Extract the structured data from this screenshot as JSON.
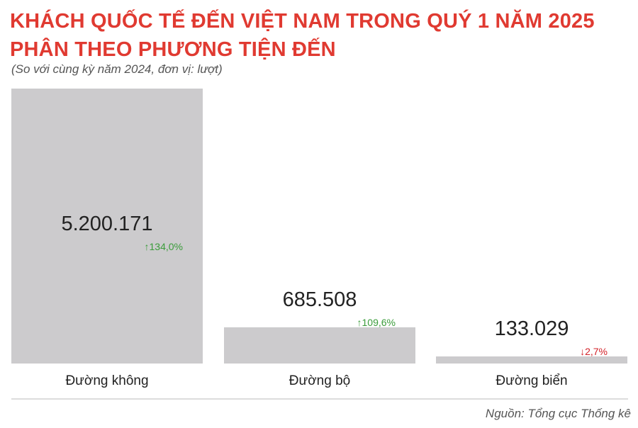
{
  "header": {
    "title_line1": "KHÁCH QUỐC TẾ ĐẾN VIỆT NAM TRONG QUÝ 1 NĂM 2025",
    "title_line2": "PHÂN THEO PHƯƠNG TIỆN ĐẾN",
    "subtitle": "(So với cùng kỳ năm 2024, đơn vị: lượt)"
  },
  "footer": {
    "source": "Nguồn: Tổng cục Thống kê"
  },
  "colors": {
    "title": "#e03a31",
    "bar": "#cccbcd",
    "up": "#3a9c3a",
    "down": "#d3232a"
  },
  "chart_data": {
    "type": "bar",
    "categories": [
      "Đường không",
      "Đường bộ",
      "Đường biển"
    ],
    "values": [
      5200171,
      685508,
      133029
    ],
    "value_labels": [
      "5.200.171",
      "685.508",
      "133.029"
    ],
    "changes": [
      {
        "direction": "up",
        "label": "134,0%"
      },
      {
        "direction": "up",
        "label": "109,6%"
      },
      {
        "direction": "down",
        "label": "2,7%"
      }
    ],
    "ylim": [
      0,
      5200171
    ],
    "grid": false
  }
}
